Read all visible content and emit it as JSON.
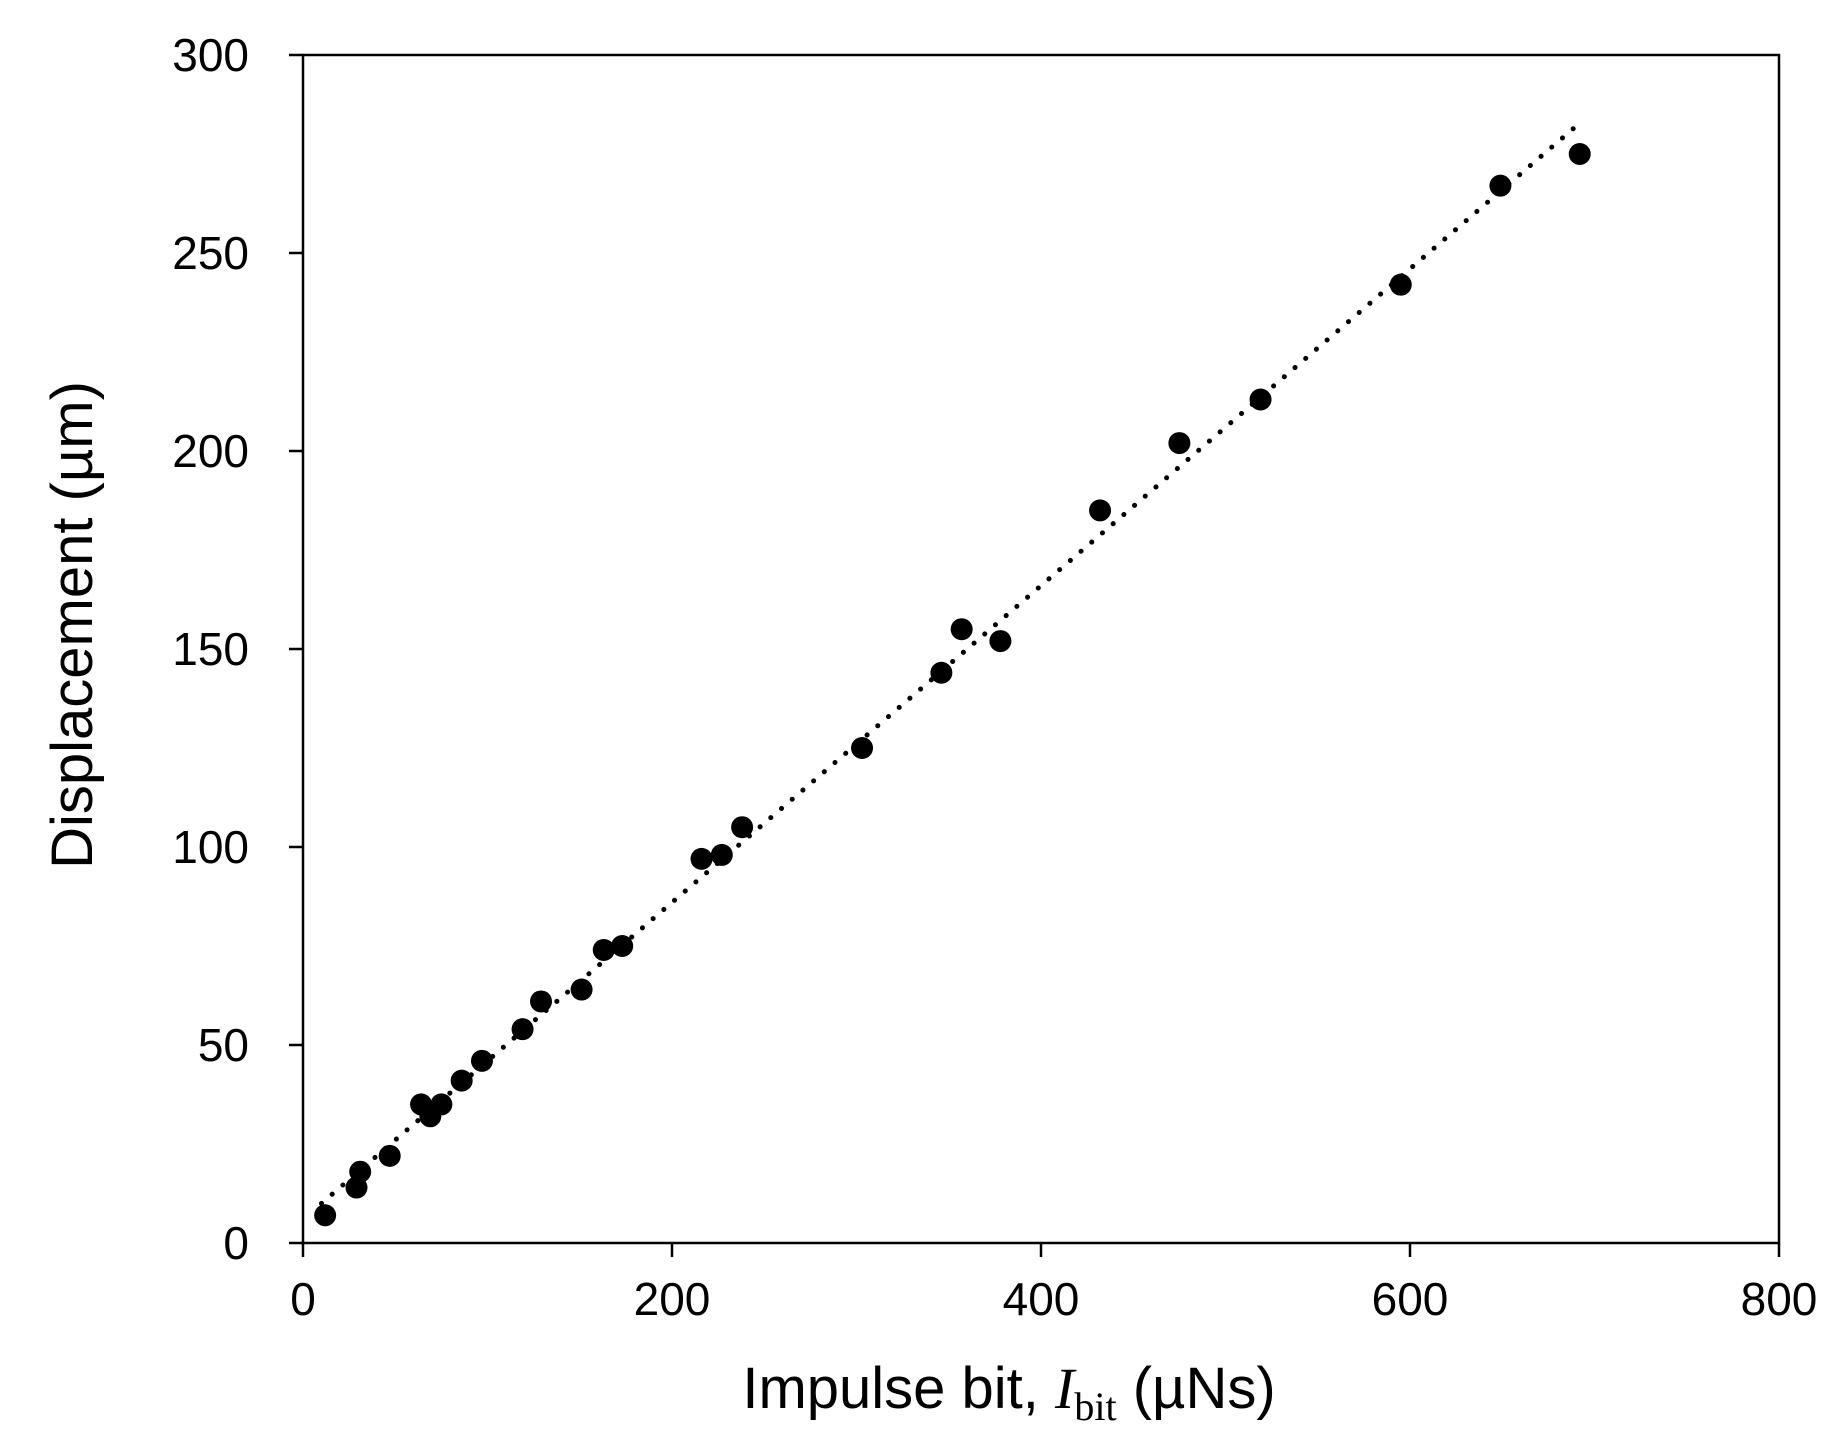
{
  "chart_data": {
    "type": "scatter",
    "title": "",
    "xlabel": {
      "prefix": "Impulse bit, ",
      "symbol": "I",
      "subscript": "bit",
      "suffix": " (µNs)"
    },
    "ylabel": "Displacement (µm)",
    "xlim": [
      0,
      800
    ],
    "ylim": [
      0,
      300
    ],
    "xticks": [
      "0",
      "200",
      "400",
      "600",
      "800"
    ],
    "yticks": [
      "0",
      "50",
      "100",
      "150",
      "200",
      "250",
      "300"
    ],
    "xtick_values": [
      0,
      200,
      400,
      600,
      800
    ],
    "ytick_values": [
      0,
      50,
      100,
      150,
      200,
      250,
      300
    ],
    "grid": false,
    "legend": "none",
    "series": [
      {
        "marker": "filled-circle",
        "color": "#000000",
        "x": [
          12,
          29,
          31,
          47,
          64,
          69,
          75,
          86,
          97,
          119,
          129,
          151,
          163,
          173,
          216,
          227,
          238,
          303,
          346,
          357,
          378,
          432,
          475,
          519,
          595,
          649,
          692
        ],
        "y": [
          7,
          14,
          18,
          22,
          35,
          32,
          35,
          41,
          46,
          54,
          61,
          64,
          74,
          75,
          97,
          98,
          105,
          125,
          144,
          155,
          152,
          185,
          202,
          213,
          242,
          267,
          275
        ]
      }
    ],
    "trendline": {
      "style": "dotted",
      "color": "#000000",
      "x": [
        10,
        690
      ],
      "y": [
        10,
        282
      ]
    }
  }
}
